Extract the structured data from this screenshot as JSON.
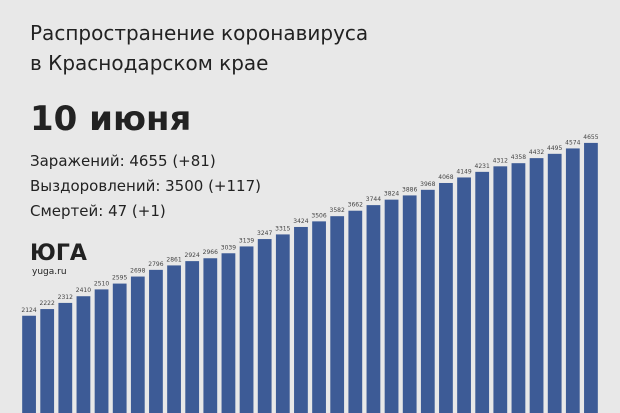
{
  "chart_data": {
    "type": "bar",
    "title": "Распространение коронавируса",
    "subtitle": "в Краснодарском крае",
    "date": "10 июня",
    "stats": [
      "Заражений: 4655 (+81)",
      "Выздоровлений: 3500 (+117)",
      "Смертей: 47 (+1)"
    ],
    "logo": "ЮГА",
    "site": "yuga.ru",
    "values": [
      2124,
      2222,
      2312,
      2410,
      2510,
      2595,
      2698,
      2796,
      2861,
      2924,
      2966,
      3039,
      3139,
      3247,
      3315,
      3424,
      3506,
      3582,
      3662,
      3744,
      3824,
      3886,
      3968,
      4068,
      4149,
      4231,
      4312,
      4358,
      4432,
      4495,
      4574,
      4655
    ],
    "color": "#3d5b96",
    "ylim": [
      700,
      4800
    ]
  }
}
